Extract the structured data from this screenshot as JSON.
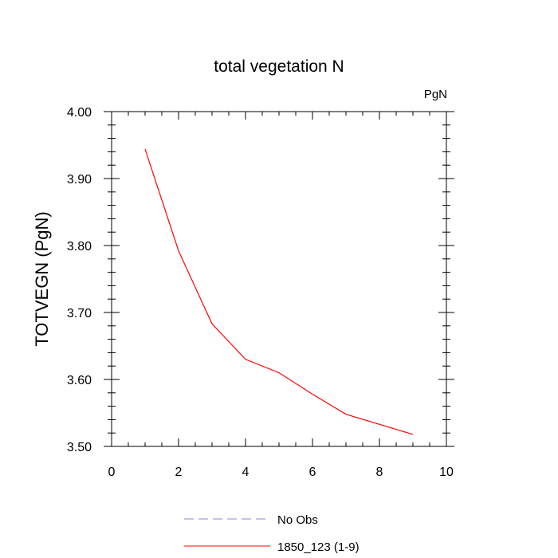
{
  "chart_data": {
    "type": "line",
    "title": "total vegetation N",
    "units_label": "PgN",
    "xlabel": "",
    "ylabel": "TOTVEGN  (PgN)",
    "xlim": [
      0,
      10
    ],
    "ylim": [
      3.5,
      4.0
    ],
    "x_ticks": [
      0,
      2,
      4,
      6,
      8,
      10
    ],
    "y_ticks": [
      "3.50",
      "3.60",
      "3.70",
      "3.80",
      "3.90",
      "4.00"
    ],
    "grid": false,
    "legend_position": "bottom",
    "series": [
      {
        "name": "1850_123 (1-9)",
        "color": "#ff0000",
        "style": "solid",
        "x": [
          1,
          2,
          3,
          4,
          5,
          6,
          7,
          8,
          9
        ],
        "y": [
          3.944,
          3.792,
          3.683,
          3.63,
          3.61,
          3.578,
          3.548,
          3.533,
          3.518
        ]
      }
    ],
    "legend": [
      {
        "label": "No Obs",
        "color": "#8a8ad8",
        "style": "dashed"
      },
      {
        "label": "1850_123 (1-9)",
        "color": "#ff0000",
        "style": "solid"
      }
    ]
  }
}
